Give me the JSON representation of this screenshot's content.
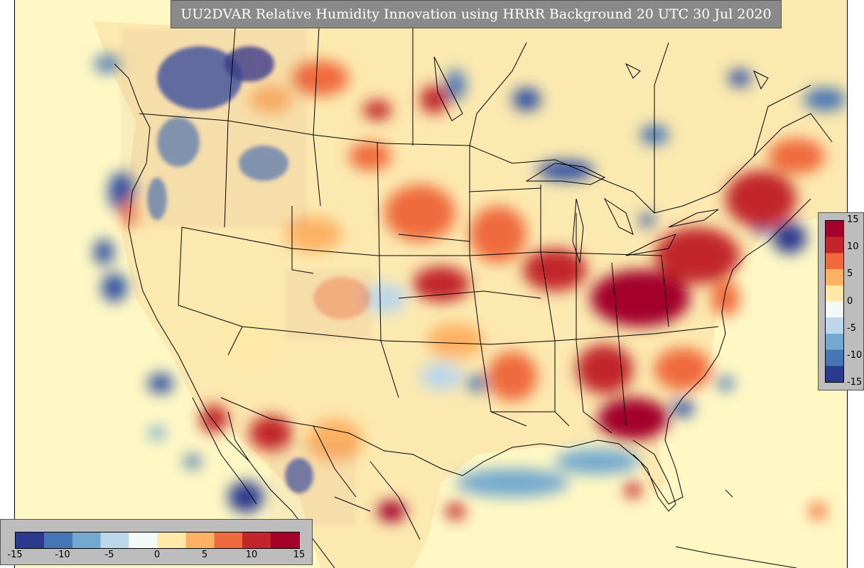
{
  "title": "UU2DVAR Relative Humidity Innovation using HRRR Background 20 UTC 30 Jul 2020",
  "colorbar": {
    "min": -15,
    "max": 15,
    "ticks": [
      "-15",
      "-10",
      "-5",
      "0",
      "5",
      "10",
      "15"
    ],
    "colors": [
      "#2b3a8f",
      "#4575b4",
      "#74a9cf",
      "#bcd7ea",
      "#f2f9f6",
      "#fee9a8",
      "#fdb164",
      "#ef6a3c",
      "#c2262c",
      "#a3002a"
    ]
  },
  "map": {
    "background_color": "#fff8c4",
    "boundary_color": "#000000"
  }
}
